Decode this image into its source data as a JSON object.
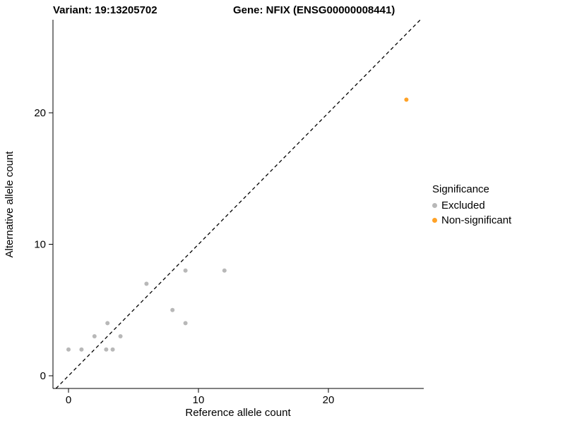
{
  "titles": {
    "variant": "Variant: 19:13205702",
    "gene": "Gene: NFIX (ENSG00000008441)"
  },
  "axes": {
    "x_label": "Reference allele count",
    "y_label": "Alternative allele count",
    "x_ticks": [
      0,
      10,
      20
    ],
    "y_ticks": [
      0,
      10,
      20
    ]
  },
  "legend": {
    "title": "Significance",
    "items": [
      {
        "label": "Excluded",
        "color": "#B8B8B8"
      },
      {
        "label": "Non-significant",
        "color": "#FFA227"
      }
    ]
  },
  "chart_data": {
    "type": "scatter",
    "title": "Variant: 19:13205702 / Gene: NFIX (ENSG00000008441)",
    "xlabel": "Reference allele count",
    "ylabel": "Alternative allele count",
    "xlim": [
      -1.2,
      27.3
    ],
    "ylim": [
      -1.0,
      27.1
    ],
    "grid": false,
    "legend_title": "Significance",
    "legend_position": "right",
    "reference_line": {
      "style": "dashed",
      "slope": 1,
      "intercept": 0,
      "color": "#000000"
    },
    "series": [
      {
        "name": "Excluded",
        "color": "#B8B8B8",
        "points": [
          [
            0,
            2
          ],
          [
            1,
            2
          ],
          [
            2,
            3
          ],
          [
            2.9,
            2
          ],
          [
            3.4,
            2
          ],
          [
            3,
            4
          ],
          [
            4,
            3
          ],
          [
            6,
            7
          ],
          [
            8,
            5
          ],
          [
            9,
            4
          ],
          [
            9,
            8
          ],
          [
            12,
            8
          ]
        ]
      },
      {
        "name": "Non-significant",
        "color": "#FFA227",
        "points": [
          [
            26,
            21
          ]
        ]
      }
    ]
  }
}
